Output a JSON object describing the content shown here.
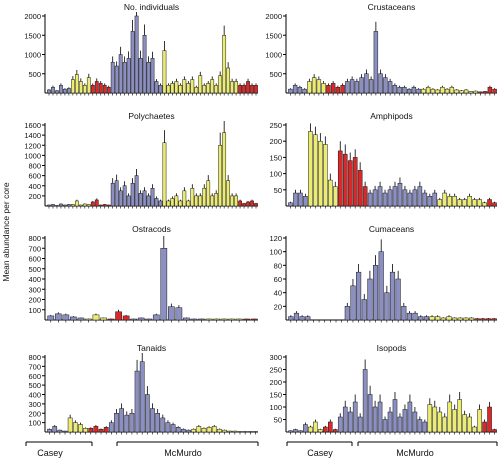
{
  "figure": {
    "y_axis_label": "Mean abundance per core",
    "site_labels": [
      "Casey",
      "McMurdo"
    ]
  },
  "colors": {
    "blue": "#8c8fc2",
    "yellow": "#ecec72",
    "red": "#d82a2a",
    "axis": "#000000",
    "edge": "#1a1a1a"
  },
  "chart_data": [
    {
      "type": "bar",
      "title": "No. individuals",
      "ylim": [
        0,
        2000
      ],
      "yticks": [
        500,
        1000,
        1500,
        2000
      ],
      "colors": [
        "b",
        "b",
        "b",
        "b",
        "b",
        "b",
        "y",
        "y",
        "y",
        "y",
        "y",
        "r",
        "r",
        "r",
        "r",
        "r",
        "b",
        "b",
        "b",
        "b",
        "b",
        "b",
        "b",
        "b",
        "b",
        "b",
        "b",
        "b",
        "b",
        "y",
        "y",
        "y",
        "y",
        "y",
        "y",
        "y",
        "y",
        "y",
        "y",
        "y",
        "y",
        "y",
        "y",
        "y",
        "y",
        "y",
        "y",
        "y",
        "r",
        "r",
        "r",
        "r",
        "r"
      ],
      "values": [
        80,
        150,
        60,
        200,
        100,
        120,
        350,
        480,
        300,
        200,
        400,
        200,
        300,
        250,
        200,
        150,
        800,
        700,
        1000,
        800,
        900,
        1600,
        2000,
        900,
        1500,
        800,
        900,
        300,
        200,
        1100,
        200,
        250,
        300,
        200,
        350,
        250,
        350,
        150,
        450,
        200,
        250,
        350,
        200,
        450,
        1500,
        650,
        300,
        300,
        200,
        200,
        300,
        200,
        200
      ],
      "errors": [
        20,
        40,
        15,
        50,
        25,
        30,
        90,
        120,
        80,
        50,
        100,
        50,
        80,
        60,
        50,
        40,
        150,
        120,
        200,
        150,
        180,
        300,
        250,
        200,
        280,
        150,
        170,
        60,
        50,
        250,
        50,
        60,
        70,
        50,
        80,
        60,
        80,
        40,
        100,
        50,
        60,
        80,
        50,
        110,
        250,
        150,
        70,
        70,
        50,
        50,
        70,
        50,
        50
      ]
    },
    {
      "type": "bar",
      "title": "Crustaceans",
      "ylim": [
        0,
        2000
      ],
      "yticks": [
        500,
        1000,
        1500,
        2000
      ],
      "colors": [
        "b",
        "b",
        "b",
        "b",
        "y",
        "y",
        "y",
        "y",
        "r",
        "r",
        "r",
        "r",
        "b",
        "b",
        "b",
        "b",
        "b",
        "b",
        "b",
        "b",
        "b",
        "b",
        "b",
        "b",
        "b",
        "b",
        "b",
        "b",
        "y",
        "y",
        "y",
        "y",
        "y",
        "y",
        "y",
        "y",
        "y",
        "y",
        "y",
        "y",
        "r",
        "r",
        "r",
        "r"
      ],
      "values": [
        100,
        200,
        150,
        100,
        300,
        400,
        350,
        250,
        200,
        250,
        150,
        200,
        300,
        350,
        300,
        400,
        500,
        350,
        1600,
        500,
        400,
        300,
        200,
        150,
        150,
        100,
        150,
        100,
        100,
        150,
        100,
        80,
        150,
        100,
        150,
        80,
        60,
        80,
        40,
        50,
        30,
        40,
        150,
        100
      ],
      "errors": [
        25,
        50,
        40,
        25,
        70,
        90,
        80,
        60,
        50,
        60,
        40,
        50,
        70,
        80,
        70,
        90,
        110,
        80,
        250,
        110,
        90,
        70,
        50,
        40,
        40,
        25,
        40,
        25,
        25,
        40,
        25,
        20,
        40,
        25,
        40,
        20,
        15,
        20,
        10,
        12,
        8,
        10,
        40,
        25
      ]
    },
    {
      "type": "bar",
      "title": "Polychaetes",
      "ylim": [
        0,
        1600
      ],
      "yticks": [
        200,
        400,
        600,
        800,
        1000,
        1200,
        1400,
        1600
      ],
      "colors": [
        "b",
        "b",
        "b",
        "b",
        "b",
        "b",
        "y",
        "y",
        "y",
        "y",
        "y",
        "r",
        "r",
        "r",
        "r",
        "r",
        "b",
        "b",
        "b",
        "b",
        "b",
        "b",
        "b",
        "b",
        "b",
        "b",
        "b",
        "b",
        "b",
        "y",
        "y",
        "y",
        "y",
        "y",
        "y",
        "y",
        "y",
        "y",
        "y",
        "y",
        "y",
        "y",
        "y",
        "y",
        "y",
        "y",
        "y",
        "y",
        "r",
        "r",
        "r",
        "r",
        "r"
      ],
      "values": [
        20,
        30,
        10,
        40,
        20,
        30,
        30,
        100,
        20,
        40,
        30,
        80,
        120,
        20,
        30,
        20,
        450,
        500,
        300,
        400,
        200,
        450,
        600,
        250,
        300,
        200,
        350,
        150,
        100,
        1250,
        100,
        150,
        200,
        100,
        300,
        100,
        350,
        200,
        200,
        350,
        500,
        200,
        250,
        1200,
        1450,
        500,
        200,
        200,
        100,
        50,
        80,
        100,
        50
      ],
      "errors": [
        5,
        8,
        3,
        10,
        5,
        8,
        8,
        25,
        5,
        10,
        8,
        20,
        30,
        5,
        8,
        5,
        100,
        120,
        70,
        90,
        50,
        100,
        130,
        60,
        70,
        50,
        80,
        40,
        25,
        250,
        25,
        40,
        50,
        25,
        70,
        25,
        80,
        50,
        50,
        80,
        110,
        50,
        60,
        250,
        300,
        110,
        50,
        50,
        25,
        12,
        20,
        25,
        12
      ]
    },
    {
      "type": "bar",
      "title": "Amphipods",
      "ylim": [
        0,
        250
      ],
      "yticks": [
        50,
        100,
        150,
        200,
        250
      ],
      "colors": [
        "b",
        "b",
        "b",
        "b",
        "y",
        "y",
        "y",
        "y",
        "y",
        "y",
        "r",
        "r",
        "r",
        "r",
        "r",
        "r",
        "b",
        "b",
        "b",
        "b",
        "b",
        "b",
        "b",
        "b",
        "b",
        "b",
        "b",
        "b",
        "b",
        "b",
        "y",
        "y",
        "y",
        "y",
        "y",
        "y",
        "y",
        "y",
        "y",
        "y",
        "r",
        "r"
      ],
      "values": [
        10,
        40,
        40,
        30,
        230,
        220,
        200,
        190,
        80,
        60,
        170,
        160,
        140,
        150,
        110,
        60,
        40,
        50,
        60,
        40,
        50,
        60,
        70,
        50,
        40,
        50,
        60,
        40,
        30,
        40,
        20,
        40,
        30,
        30,
        20,
        20,
        30,
        20,
        20,
        10,
        20,
        10
      ],
      "errors": [
        3,
        10,
        10,
        8,
        25,
        25,
        25,
        25,
        20,
        15,
        30,
        30,
        25,
        25,
        25,
        15,
        10,
        12,
        15,
        10,
        12,
        15,
        18,
        12,
        10,
        12,
        15,
        10,
        8,
        10,
        5,
        10,
        8,
        8,
        5,
        5,
        8,
        5,
        5,
        3,
        5,
        3
      ]
    },
    {
      "type": "bar",
      "title": "Ostracods",
      "ylim": [
        0,
        800
      ],
      "yticks": [
        100,
        200,
        300,
        400,
        500,
        600,
        700,
        800
      ],
      "colors": [
        "b",
        "b",
        "b",
        "b",
        "b",
        "y",
        "y",
        "y",
        "r",
        "r",
        "r",
        "b",
        "b",
        "b",
        "b",
        "b",
        "b",
        "b",
        "b",
        "b",
        "b",
        "y",
        "y",
        "y",
        "y",
        "y",
        "r",
        "r"
      ],
      "values": [
        40,
        60,
        50,
        30,
        20,
        10,
        50,
        20,
        10,
        80,
        40,
        10,
        20,
        10,
        50,
        700,
        130,
        120,
        20,
        10,
        10,
        10,
        10,
        10,
        10,
        10,
        10,
        10
      ],
      "errors": [
        10,
        15,
        12,
        8,
        5,
        3,
        12,
        5,
        3,
        20,
        10,
        3,
        5,
        3,
        12,
        120,
        30,
        25,
        5,
        3,
        3,
        3,
        3,
        3,
        3,
        3,
        3,
        3
      ]
    },
    {
      "type": "bar",
      "title": "Cumaceans",
      "ylim": [
        0,
        120
      ],
      "yticks": [
        20,
        40,
        60,
        80,
        100,
        120
      ],
      "colors": [
        "b",
        "b",
        "b",
        "b",
        "y",
        "y",
        "y",
        "r",
        "r",
        "r",
        "b",
        "b",
        "b",
        "b",
        "b",
        "b",
        "b",
        "b",
        "b",
        "b",
        "b",
        "b",
        "b",
        "b",
        "b",
        "y",
        "y",
        "y",
        "y",
        "y",
        "y",
        "y",
        "y",
        "r",
        "r",
        "r",
        "r"
      ],
      "values": [
        5,
        10,
        5,
        5,
        0,
        0,
        0,
        0,
        0,
        0,
        20,
        50,
        70,
        30,
        60,
        80,
        100,
        40,
        70,
        60,
        20,
        10,
        10,
        5,
        5,
        5,
        5,
        3,
        5,
        3,
        3,
        3,
        3,
        2,
        2,
        2,
        2
      ],
      "errors": [
        2,
        3,
        2,
        2,
        0,
        0,
        0,
        0,
        0,
        0,
        5,
        10,
        12,
        8,
        12,
        15,
        18,
        10,
        12,
        12,
        5,
        3,
        3,
        2,
        2,
        2,
        2,
        1,
        2,
        1,
        1,
        1,
        1,
        1,
        1,
        1,
        1
      ]
    },
    {
      "type": "bar",
      "title": "Tanaids",
      "ylim": [
        0,
        800
      ],
      "yticks": [
        100,
        200,
        300,
        400,
        500,
        600,
        700,
        800
      ],
      "colors": [
        "b",
        "b",
        "b",
        "b",
        "y",
        "y",
        "y",
        "y",
        "r",
        "r",
        "r",
        "r",
        "b",
        "b",
        "b",
        "b",
        "b",
        "b",
        "b",
        "b",
        "b",
        "b",
        "b",
        "b",
        "b",
        "b",
        "b",
        "b",
        "y",
        "y",
        "y",
        "y",
        "y",
        "y",
        "y",
        "y",
        "y",
        "y",
        "r",
        "r",
        "r"
      ],
      "values": [
        30,
        60,
        20,
        10,
        150,
        100,
        80,
        40,
        40,
        60,
        30,
        50,
        100,
        200,
        250,
        180,
        200,
        650,
        750,
        400,
        250,
        200,
        150,
        100,
        80,
        50,
        30,
        20,
        30,
        60,
        40,
        50,
        60,
        30,
        20,
        10,
        10,
        5,
        5,
        5,
        5
      ],
      "errors": [
        8,
        15,
        5,
        3,
        35,
        25,
        20,
        10,
        10,
        15,
        8,
        12,
        25,
        45,
        55,
        40,
        45,
        120,
        130,
        90,
        55,
        45,
        35,
        25,
        20,
        12,
        8,
        5,
        8,
        15,
        10,
        12,
        15,
        8,
        5,
        3,
        3,
        2,
        2,
        2,
        2
      ]
    },
    {
      "type": "bar",
      "title": "Isopods",
      "ylim": [
        0,
        300
      ],
      "yticks": [
        50,
        100,
        150,
        200,
        250,
        300
      ],
      "colors": [
        "b",
        "b",
        "b",
        "b",
        "y",
        "y",
        "y",
        "r",
        "r",
        "r",
        "b",
        "b",
        "b",
        "b",
        "b",
        "b",
        "b",
        "b",
        "b",
        "b",
        "b",
        "b",
        "b",
        "b",
        "b",
        "b",
        "b",
        "b",
        "y",
        "y",
        "y",
        "y",
        "y",
        "y",
        "y",
        "y",
        "y",
        "y",
        "y",
        "r",
        "r",
        "r"
      ],
      "values": [
        5,
        10,
        5,
        30,
        20,
        40,
        10,
        20,
        40,
        10,
        60,
        100,
        80,
        120,
        60,
        250,
        150,
        100,
        120,
        50,
        80,
        130,
        60,
        90,
        120,
        80,
        50,
        40,
        110,
        100,
        80,
        60,
        120,
        90,
        130,
        70,
        60,
        20,
        90,
        40,
        100,
        10
      ],
      "errors": [
        2,
        3,
        2,
        8,
        5,
        10,
        3,
        5,
        10,
        3,
        15,
        25,
        20,
        30,
        15,
        40,
        35,
        25,
        30,
        12,
        20,
        30,
        15,
        20,
        30,
        20,
        12,
        10,
        25,
        25,
        20,
        15,
        30,
        20,
        30,
        15,
        15,
        5,
        20,
        10,
        20,
        3
      ]
    }
  ]
}
